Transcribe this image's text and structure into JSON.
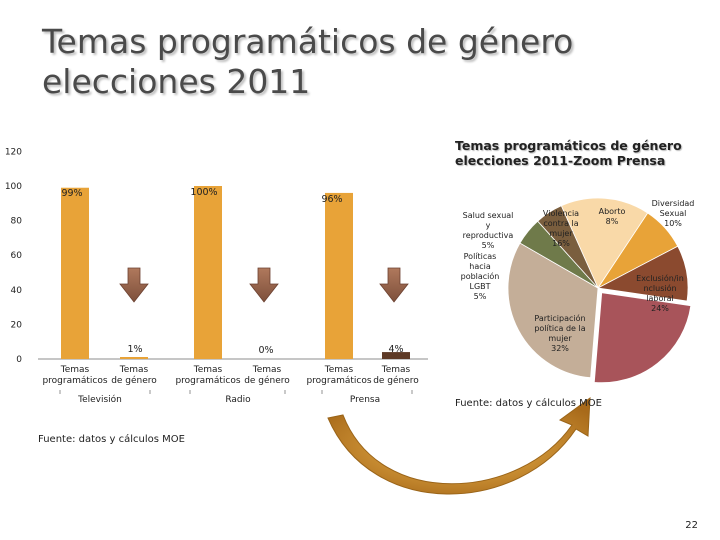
{
  "slide": {
    "title_lines": [
      "Temas programáticos de género",
      "elecciones 2011"
    ],
    "page_number": "22"
  },
  "chart_data": [
    {
      "type": "bar",
      "groups": [
        "Televisión",
        "Radio",
        "Prensa"
      ],
      "categories": [
        "Temas programáticos",
        "Temas de género",
        "Temas programáticos",
        "Temas de género",
        "Temas programáticos",
        "Temas de género"
      ],
      "values": [
        99,
        1,
        100,
        0,
        96,
        4
      ],
      "data_labels": [
        "99%",
        "1%",
        "100%",
        "0%",
        "96%",
        "4%"
      ],
      "colors": [
        "#e8a338",
        "#e8a338",
        "#e8a338",
        "#e8a338",
        "#e8a338",
        "#5e3a26"
      ],
      "y_ticks": [
        "0",
        "20",
        "40",
        "60",
        "80",
        "100",
        "120"
      ],
      "ylim": [
        0,
        120
      ],
      "source": "Fuente: datos y cálculos MOE"
    },
    {
      "type": "pie",
      "title_lines": [
        "Temas programáticos de género",
        "elecciones 2011-Zoom Prensa"
      ],
      "slices": [
        {
          "label_lines": [
            "Violencia",
            "contra la",
            "mujer",
            "16%"
          ],
          "value": 16,
          "color": "#f9d9a8"
        },
        {
          "label_lines": [
            "Aborto",
            "8%"
          ],
          "value": 8,
          "color": "#e8a338"
        },
        {
          "label_lines": [
            "Diversidad",
            "Sexual",
            "10%"
          ],
          "value": 10,
          "color": "#8b4a2f"
        },
        {
          "label_lines": [
            "Exclusión/in",
            "nclusión",
            "laboral",
            "24%"
          ],
          "value": 24,
          "color": "#a8545a"
        },
        {
          "label_lines": [
            "Participación",
            "política de la",
            "mujer",
            "32%"
          ],
          "value": 32,
          "color": "#c4ae98"
        },
        {
          "label_lines": [
            "Políticas",
            "hacia",
            "población",
            "LGBT",
            "5%"
          ],
          "value": 5,
          "color": "#6f7a4a"
        },
        {
          "label_lines": [
            "Salud sexual",
            "y",
            "reproductiva",
            "5%"
          ],
          "value": 5,
          "color": "#7a5e3e"
        }
      ],
      "source": "Fuente: datos y cálculos MOE"
    }
  ]
}
